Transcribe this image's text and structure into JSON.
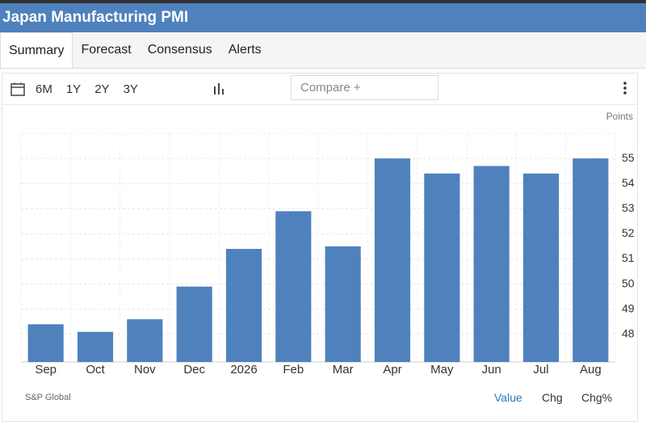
{
  "header": {
    "title": "Japan Manufacturing PMI"
  },
  "tabs": [
    "Summary",
    "Forecast",
    "Consensus",
    "Alerts"
  ],
  "toolbar": {
    "ranges": [
      "6M",
      "1Y",
      "2Y",
      "3Y"
    ],
    "compare": "Compare +"
  },
  "chart_data": {
    "type": "bar",
    "y_label": "Points",
    "categories": [
      "Sep",
      "Oct",
      "Nov",
      "Dec",
      "2026",
      "Feb",
      "Mar",
      "Apr",
      "May",
      "Jun",
      "Jul",
      "Aug"
    ],
    "values": [
      48.4,
      48.1,
      48.6,
      49.9,
      51.4,
      52.9,
      51.5,
      55.0,
      54.4,
      54.7,
      54.4,
      55.0
    ],
    "color": "#4f81bd",
    "ylim": [
      46.9,
      56
    ],
    "yticks": [
      48,
      49,
      50,
      51,
      52,
      53,
      54,
      55
    ],
    "grid": true,
    "y_axis_side": "right"
  },
  "footer": {
    "source": "S&P Global",
    "views": [
      "Value",
      "Chg",
      "Chg%"
    ]
  }
}
